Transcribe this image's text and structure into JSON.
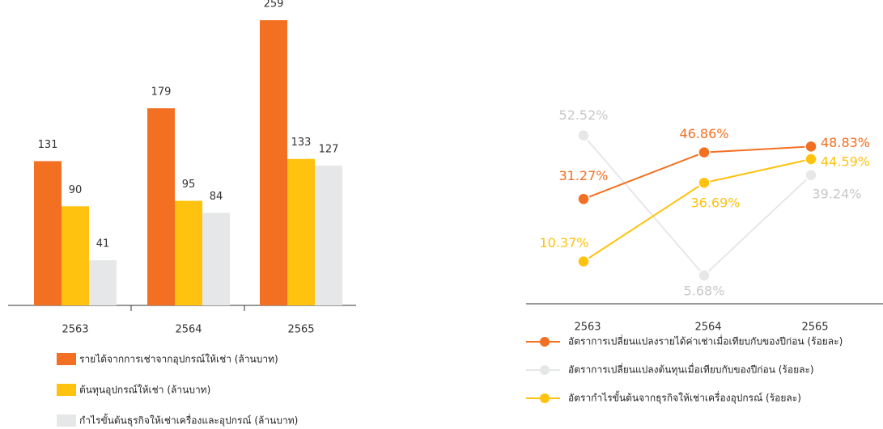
{
  "chart_data": [
    {
      "type": "bar",
      "categories": [
        "2563",
        "2564",
        "2565"
      ],
      "series": [
        {
          "name": "รายได้จากการเช่าจากอุปกรณ์ให้เช่า (ล้านบาท)",
          "color": "#f36f21",
          "values": [
            131,
            179,
            259
          ]
        },
        {
          "name": "ต้นทุนอุปกรณ์ให้เช่า (ล้านบาท)",
          "color": "#ffc20e",
          "values": [
            90,
            95,
            133
          ]
        },
        {
          "name": "กำไรขั้นต้นธุรกิจให้เช่าเครื่องและอุปกรณ์ (ล้านบาท)",
          "color": "#e6e7e8",
          "values": [
            41,
            84,
            127
          ]
        }
      ]
    },
    {
      "type": "line",
      "categories": [
        "2563",
        "2564",
        "2565"
      ],
      "series": [
        {
          "name": "อัตราการเปลี่ยนแปลงรายได้ค่าเช่าเมื่อเทียบกับของปีก่อน (ร้อยละ)",
          "color": "#f36f21",
          "values": [
            31.27,
            46.86,
            48.83
          ],
          "value_labels": [
            "31.27%",
            "46.86%",
            "48.83%"
          ]
        },
        {
          "name": "อัตราการเปลี่ยนแปลงต้นทุนเมื่อเทียบกับของปีก่อน (ร้อยละ)",
          "color": "#e6e7e8",
          "values": [
            52.52,
            5.68,
            39.24
          ],
          "value_labels": [
            "52.52%",
            "5.68%",
            "39.24%"
          ]
        },
        {
          "name": "อัตรากำไรขั้นต้นจากธุรกิจให้เช่าเครื่องอุปกรณ์ (ร้อยละ)",
          "color": "#ffc20e",
          "values": [
            10.37,
            36.69,
            44.59
          ],
          "value_labels": [
            "10.37%",
            "36.69%",
            "44.59%"
          ]
        }
      ]
    }
  ]
}
